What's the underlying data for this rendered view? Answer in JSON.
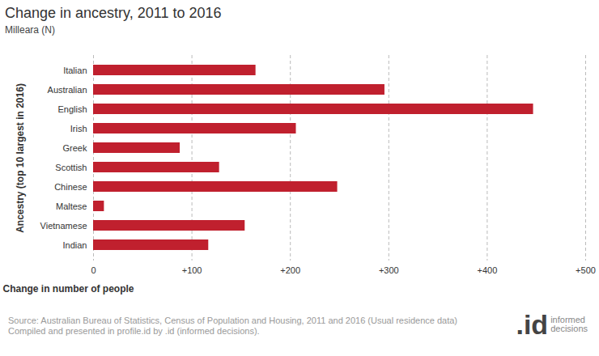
{
  "chart_data": {
    "type": "bar",
    "orientation": "horizontal",
    "title": "Change in ancestry, 2011 to 2016",
    "subtitle": "Milleara (N)",
    "x_label": "Change in number of people",
    "y_label": "Ancestry (top 10 largest in 2016)",
    "categories": [
      "Italian",
      "Australian",
      "English",
      "Irish",
      "Greek",
      "Scottish",
      "Chinese",
      "Maltese",
      "Vietnamese",
      "Indian"
    ],
    "values": [
      165,
      296,
      447,
      206,
      88,
      128,
      248,
      11,
      154,
      117
    ],
    "color": "#c0202e",
    "xlim": [
      0,
      500
    ],
    "xticks": [
      0,
      {
        "value": 100,
        "label": "+100"
      },
      {
        "value": 200,
        "label": "+200"
      },
      {
        "value": 300,
        "label": "+300"
      },
      {
        "value": 400,
        "label": "+400"
      },
      {
        "value": 500,
        "label": "+500"
      }
    ],
    "grid": true,
    "source": [
      "Source: Australian Bureau of Statistics, Census of Population and Housing, 2011 and 2016 (Usual residence data)",
      "Compiled and presented in profile.id by .id (informed decisions)."
    ],
    "logo": [
      ".id",
      "informed",
      "decisions"
    ]
  }
}
